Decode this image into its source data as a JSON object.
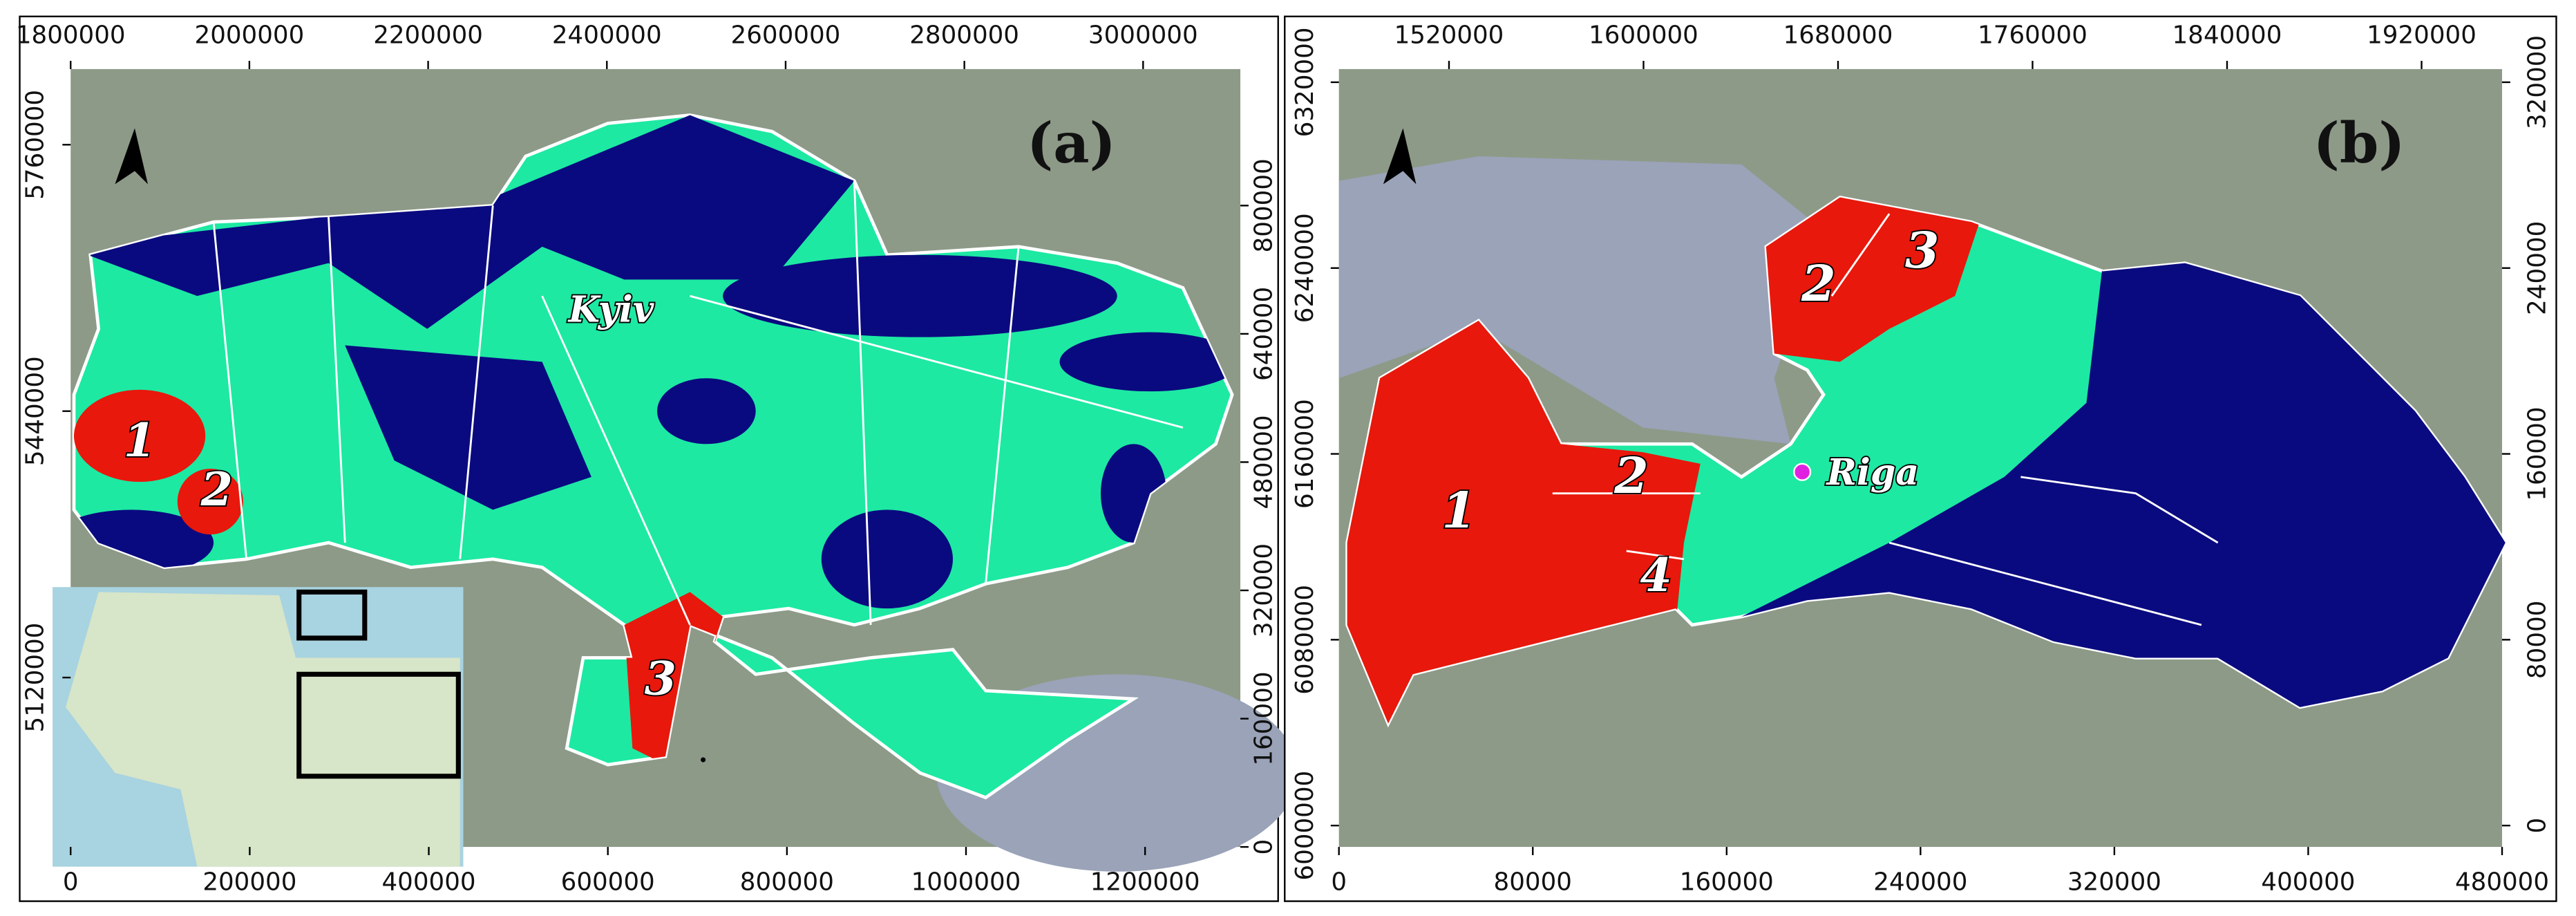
{
  "panels": [
    {
      "label": "(a)",
      "city": "Kyiv",
      "region_labels": [
        "1",
        "2",
        "3"
      ],
      "top_ticks": [
        1800000,
        2000000,
        2200000,
        2400000,
        2600000,
        2800000,
        3000000
      ],
      "bottom_ticks": [
        0,
        200000,
        400000,
        600000,
        800000,
        1000000,
        1200000
      ],
      "left_ticks": [
        5760000,
        5440000,
        5120000
      ],
      "right_ticks": [
        800000,
        640000,
        480000,
        320000,
        160000,
        0
      ]
    },
    {
      "label": "(b)",
      "city": "Riga",
      "region_labels": [
        "1",
        "2",
        "4",
        "2",
        "3"
      ],
      "top_ticks": [
        1520000,
        1600000,
        1680000,
        1760000,
        1840000,
        1920000
      ],
      "bottom_ticks": [
        0,
        80000,
        160000,
        240000,
        320000,
        400000,
        480000
      ],
      "left_ticks": [
        6320000,
        6240000,
        6160000,
        6080000,
        6000000
      ],
      "right_ticks": [
        320000,
        240000,
        160000,
        80000,
        0
      ]
    }
  ]
}
